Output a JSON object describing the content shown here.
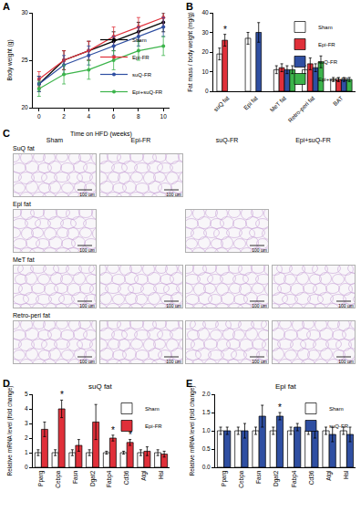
{
  "panel_labels": [
    "A",
    "B",
    "C",
    "D",
    "E"
  ],
  "chart_data": [
    {
      "type": "line",
      "x_label": "Time on HFD (weeks)",
      "y_label": "Body weight (g)",
      "x": [
        0,
        2,
        4,
        6,
        8,
        10
      ],
      "xlim": [
        -0.5,
        10.5
      ],
      "xticks": [
        0,
        2,
        4,
        6,
        8,
        10
      ],
      "ylim": [
        20,
        30
      ],
      "yticks": [
        20,
        25,
        30
      ],
      "legend": "bottom right",
      "marker": "circle",
      "series": [
        {
          "name": "Sham",
          "color": "#000000",
          "values": [
            22.5,
            25.0,
            26.0,
            27.0,
            28.0,
            29.0
          ],
          "errors": [
            0.8,
            1.0,
            1.0,
            1.0,
            1.0,
            1.0
          ]
        },
        {
          "name": "Epi-FR",
          "color": "#e0303a",
          "values": [
            23.0,
            25.0,
            26.0,
            27.5,
            28.5,
            29.5
          ],
          "errors": [
            0.8,
            1.0,
            1.0,
            1.0,
            1.0,
            1.0
          ]
        },
        {
          "name": "suQ-FR",
          "color": "#2f4fa2",
          "values": [
            22.5,
            24.5,
            25.5,
            26.5,
            27.5,
            28.5
          ],
          "errors": [
            0.8,
            1.0,
            1.0,
            1.0,
            1.0,
            1.0
          ]
        },
        {
          "name": "Epi+suQ-FR",
          "color": "#3cb44b",
          "values": [
            22.0,
            23.5,
            24.0,
            25.0,
            26.0,
            26.5
          ],
          "errors": [
            0.8,
            1.0,
            1.0,
            1.0,
            1.0,
            1.0
          ]
        }
      ]
    },
    {
      "type": "bar",
      "y_label": "Fat mass / body weight (mg/g)",
      "categories": [
        "suQ fat",
        "Epi fat",
        "MeT fat",
        "Retro-peri fat",
        "BAT"
      ],
      "ylim": [
        0,
        40
      ],
      "yticks": [
        0,
        10,
        20,
        30,
        40
      ],
      "legend": "top right",
      "series": [
        {
          "name": "Sham",
          "color": "#ffffff",
          "values": [
            19,
            27,
            11,
            11,
            6
          ],
          "errors": [
            3,
            3,
            2,
            2,
            1
          ]
        },
        {
          "name": "Epi-FR",
          "color": "#e0303a",
          "values": [
            26,
            null,
            12,
            14,
            6
          ],
          "errors": [
            3,
            null,
            2,
            3,
            1
          ]
        },
        {
          "name": "suQ-FR",
          "color": "#2f4fa2",
          "values": [
            null,
            30,
            11,
            12,
            6
          ],
          "errors": [
            null,
            5,
            2,
            2,
            1
          ]
        },
        {
          "name": "Epi+suQ-FR",
          "color": "#3cb44b",
          "values": [
            null,
            null,
            11,
            15,
            6
          ],
          "errors": [
            null,
            null,
            2,
            3,
            1
          ]
        }
      ],
      "annotations": [
        {
          "text": "*",
          "category": "suQ fat",
          "series": "Epi-FR"
        }
      ]
    },
    {
      "type": "bar",
      "title": "suQ fat",
      "y_label": "Relative mRNA level (fold change)",
      "categories": [
        "Pparg",
        "Cebpa",
        "Fasn",
        "Dgat2",
        "Fabp4",
        "Cd36",
        "Atgl",
        "Hsl"
      ],
      "ylim": [
        0,
        5
      ],
      "yticks": [
        0,
        1,
        2,
        3,
        4,
        5
      ],
      "legend": "top right",
      "series": [
        {
          "name": "Sham",
          "color": "#ffffff",
          "values": [
            1,
            1,
            1,
            1,
            1,
            1,
            1,
            1
          ],
          "errors": [
            0.2,
            0.2,
            0.2,
            0.2,
            0.1,
            0.1,
            0.2,
            0.2
          ]
        },
        {
          "name": "Epi-FR",
          "color": "#e0303a",
          "values": [
            2.6,
            4.0,
            1.5,
            3.1,
            2.0,
            1.7,
            1.1,
            0.9
          ],
          "errors": [
            0.5,
            0.6,
            0.4,
            1.2,
            0.2,
            0.2,
            0.3,
            0.2
          ]
        }
      ],
      "annotations": [
        {
          "text": "*",
          "category": "Cebpa",
          "series": "Epi-FR"
        },
        {
          "text": "*",
          "category": "Fabp4",
          "series": "Epi-FR"
        },
        {
          "text": "*",
          "category": "Cd36",
          "series": "Epi-FR"
        }
      ]
    },
    {
      "type": "bar",
      "title": "Epi fat",
      "y_label": "Relative mRNA level (fold change)",
      "categories": [
        "Pparg",
        "Cebpa",
        "Fasn",
        "Dgat2",
        "Fabp4",
        "Cd36",
        "Atgl",
        "Hsl"
      ],
      "ylim": [
        0,
        2
      ],
      "yticks": [
        {
          "value": 0,
          "label": "0.0"
        },
        {
          "value": 0.5,
          "label": "0.5"
        },
        {
          "value": 1,
          "label": "1.0"
        },
        {
          "value": 1.5,
          "label": "1.5"
        },
        {
          "value": 2,
          "label": "2.0"
        }
      ],
      "legend": "top right",
      "series": [
        {
          "name": "Sham",
          "color": "#ffffff",
          "values": [
            1,
            1,
            1,
            1,
            1,
            1,
            1,
            1
          ],
          "errors": [
            0.1,
            0.1,
            0.1,
            0.1,
            0.1,
            0.1,
            0.1,
            0.1
          ]
        },
        {
          "name": "suQ-FR",
          "color": "#2f4fa2",
          "values": [
            1.0,
            1.0,
            1.4,
            1.4,
            1.1,
            1.0,
            0.9,
            0.9
          ],
          "errors": [
            0.1,
            0.2,
            0.3,
            0.1,
            0.1,
            0.2,
            0.2,
            0.2
          ]
        }
      ],
      "annotations": [
        {
          "text": "*",
          "category": "Dgat2",
          "series": "suQ-FR"
        }
      ]
    }
  ],
  "histology": {
    "columns": [
      "Sham",
      "Epi-FR",
      "suQ-FR",
      "Epi+suQ-FR"
    ],
    "rows": [
      {
        "label": "SuQ fat",
        "columns": [
          "Sham",
          "Epi-FR"
        ]
      },
      {
        "label": "Epi fat",
        "columns": [
          "Sham",
          "suQ-FR"
        ]
      },
      {
        "label": "MeT fat",
        "columns": [
          "Sham",
          "Epi-FR",
          "suQ-FR",
          "Epi+suQ-FR"
        ]
      },
      {
        "label": "Retro-peri fat",
        "columns": [
          "Sham",
          "Epi-FR",
          "suQ-FR",
          "Epi+suQ-FR"
        ]
      }
    ],
    "scale_bar": "100 μm"
  }
}
